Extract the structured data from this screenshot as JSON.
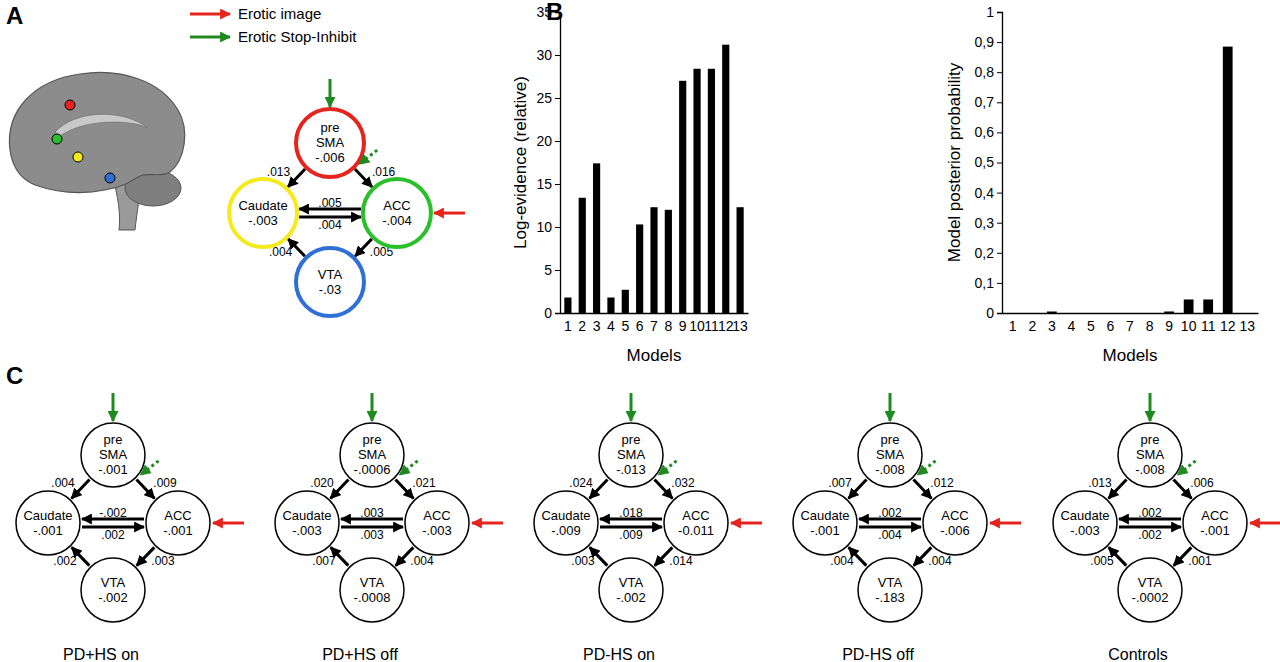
{
  "panel_labels": [
    "A",
    "B",
    "C"
  ],
  "legend": [
    {
      "label": "Erotic image",
      "color": "#e5241d"
    },
    {
      "label": "Erotic Stop-Inhibit",
      "color": "#1f8a1f"
    }
  ],
  "diagrams": [
    {
      "nodes": [
        {
          "label_lines": [
            "pre",
            "SMA"
          ],
          "value": "-.006",
          "color": "#e5241d"
        },
        {
          "label_lines": [
            "Caudate"
          ],
          "value": "-.003",
          "color": "#f4ea1c"
        },
        {
          "label_lines": [
            "ACC"
          ],
          "value": "-.004",
          "color": "#2bbf2b"
        },
        {
          "label_lines": [
            "VTA"
          ],
          "value": "-.03",
          "color": "#2f6fd6"
        }
      ],
      "edges": [
        {
          "from": 0,
          "to": 1,
          "label": ".013"
        },
        {
          "from": 0,
          "to": 2,
          "label": ".016"
        },
        {
          "from": 2,
          "to": 1,
          "label": ".005"
        },
        {
          "from": 1,
          "to": 2,
          "label": ".004"
        },
        {
          "from": 3,
          "to": 1,
          "label": ".004"
        },
        {
          "from": 2,
          "to": 3,
          "label": ".005"
        }
      ]
    },
    {
      "caption": "PD+HS on",
      "nodes": [
        {
          "label_lines": [
            "pre",
            "SMA"
          ],
          "value": "-.001"
        },
        {
          "label_lines": [
            "Caudate"
          ],
          "value": "-.001"
        },
        {
          "label_lines": [
            "ACC"
          ],
          "value": "-.001"
        },
        {
          "label_lines": [
            "VTA"
          ],
          "value": "-.002"
        }
      ],
      "edges": [
        {
          "from": 0,
          "to": 1,
          "label": ".004"
        },
        {
          "from": 0,
          "to": 2,
          "label": ".009"
        },
        {
          "from": 2,
          "to": 1,
          "label": "-.002"
        },
        {
          "from": 1,
          "to": 2,
          "label": ".002"
        },
        {
          "from": 3,
          "to": 1,
          "label": ".002"
        },
        {
          "from": 2,
          "to": 3,
          "label": ".003"
        }
      ]
    },
    {
      "caption": "PD+HS off",
      "nodes": [
        {
          "label_lines": [
            "pre",
            "SMA"
          ],
          "value": "-.0006"
        },
        {
          "label_lines": [
            "Caudate"
          ],
          "value": "-.003"
        },
        {
          "label_lines": [
            "ACC"
          ],
          "value": "-.003"
        },
        {
          "label_lines": [
            "VTA"
          ],
          "value": "-.0008"
        }
      ],
      "edges": [
        {
          "from": 0,
          "to": 1,
          "label": ".020"
        },
        {
          "from": 0,
          "to": 2,
          "label": ".021"
        },
        {
          "from": 2,
          "to": 1,
          "label": ".003"
        },
        {
          "from": 1,
          "to": 2,
          "label": ".003"
        },
        {
          "from": 3,
          "to": 1,
          "label": ".007"
        },
        {
          "from": 2,
          "to": 3,
          "label": ".004"
        }
      ]
    },
    {
      "caption": "PD-HS on",
      "nodes": [
        {
          "label_lines": [
            "pre",
            "SMA"
          ],
          "value": "-.013"
        },
        {
          "label_lines": [
            "Caudate"
          ],
          "value": "-.009"
        },
        {
          "label_lines": [
            "ACC"
          ],
          "value": "-0.011"
        },
        {
          "label_lines": [
            "VTA"
          ],
          "value": "-.002"
        }
      ],
      "edges": [
        {
          "from": 0,
          "to": 1,
          "label": ".024"
        },
        {
          "from": 0,
          "to": 2,
          "label": ".032"
        },
        {
          "from": 2,
          "to": 1,
          "label": ".018"
        },
        {
          "from": 1,
          "to": 2,
          "label": ".009"
        },
        {
          "from": 3,
          "to": 1,
          "label": ".003"
        },
        {
          "from": 2,
          "to": 3,
          "label": ".014"
        }
      ]
    },
    {
      "caption": "PD-HS off",
      "nodes": [
        {
          "label_lines": [
            "pre",
            "SMA"
          ],
          "value": "-.008"
        },
        {
          "label_lines": [
            "Caudate"
          ],
          "value": "-.001"
        },
        {
          "label_lines": [
            "ACC"
          ],
          "value": "-.006"
        },
        {
          "label_lines": [
            "VTA"
          ],
          "value": "-.183"
        }
      ],
      "edges": [
        {
          "from": 0,
          "to": 1,
          "label": ".007"
        },
        {
          "from": 0,
          "to": 2,
          "label": ".012"
        },
        {
          "from": 2,
          "to": 1,
          "label": ".002"
        },
        {
          "from": 1,
          "to": 2,
          "label": ".004"
        },
        {
          "from": 3,
          "to": 1,
          "label": ".004"
        },
        {
          "from": 2,
          "to": 3,
          "label": ".004"
        }
      ]
    },
    {
      "caption": "Controls",
      "nodes": [
        {
          "label_lines": [
            "pre",
            "SMA"
          ],
          "value": "-.008"
        },
        {
          "label_lines": [
            "Caudate"
          ],
          "value": "-.003"
        },
        {
          "label_lines": [
            "ACC"
          ],
          "value": "-.001"
        },
        {
          "label_lines": [
            "VTA"
          ],
          "value": "-.0002"
        }
      ],
      "edges": [
        {
          "from": 0,
          "to": 1,
          "label": ".013"
        },
        {
          "from": 0,
          "to": 2,
          "label": ".006"
        },
        {
          "from": 2,
          "to": 1,
          "label": ".002"
        },
        {
          "from": 1,
          "to": 2,
          "label": ".002"
        },
        {
          "from": 3,
          "to": 1,
          "label": ".005"
        },
        {
          "from": 2,
          "to": 3,
          "label": ".001"
        }
      ]
    }
  ],
  "chart_data": [
    {
      "type": "bar",
      "x_label": "Models",
      "y_label": "Log-evidence (relative)",
      "categories": [
        "1",
        "2",
        "3",
        "4",
        "5",
        "6",
        "7",
        "8",
        "9",
        "10",
        "11",
        "12",
        "13"
      ],
      "values": [
        1.8,
        13.4,
        17.4,
        1.8,
        2.7,
        10.3,
        12.3,
        12.0,
        27.0,
        28.4,
        28.4,
        31.2,
        12.3
      ],
      "color": "#000000",
      "ylim": [
        0,
        35
      ],
      "yticks": [
        0,
        5,
        10,
        15,
        20,
        25,
        30,
        35
      ],
      "grid": false
    },
    {
      "type": "bar",
      "x_label": "Models",
      "y_label": "Model posterior probability",
      "categories": [
        "1",
        "2",
        "3",
        "4",
        "5",
        "6",
        "7",
        "8",
        "9",
        "10",
        "11",
        "12",
        "13"
      ],
      "values": [
        0,
        0,
        0.005,
        0,
        0,
        0,
        0,
        0,
        0.005,
        0.045,
        0.045,
        0.885,
        0
      ],
      "color": "#000000",
      "ylim": [
        0,
        1
      ],
      "yticks": [
        0,
        {
          "value": 0.1,
          "label": "0,1"
        },
        {
          "value": 0.2,
          "label": "0,2"
        },
        {
          "value": 0.3,
          "label": "0,3"
        },
        {
          "value": 0.4,
          "label": "0,4"
        },
        {
          "value": 0.5,
          "label": "0,5"
        },
        {
          "value": 0.6,
          "label": "0,6"
        },
        {
          "value": 0.7,
          "label": "0,7"
        },
        {
          "value": 0.8,
          "label": "0,8"
        },
        {
          "value": 0.9,
          "label": "0,9"
        },
        1
      ],
      "grid": false
    }
  ]
}
